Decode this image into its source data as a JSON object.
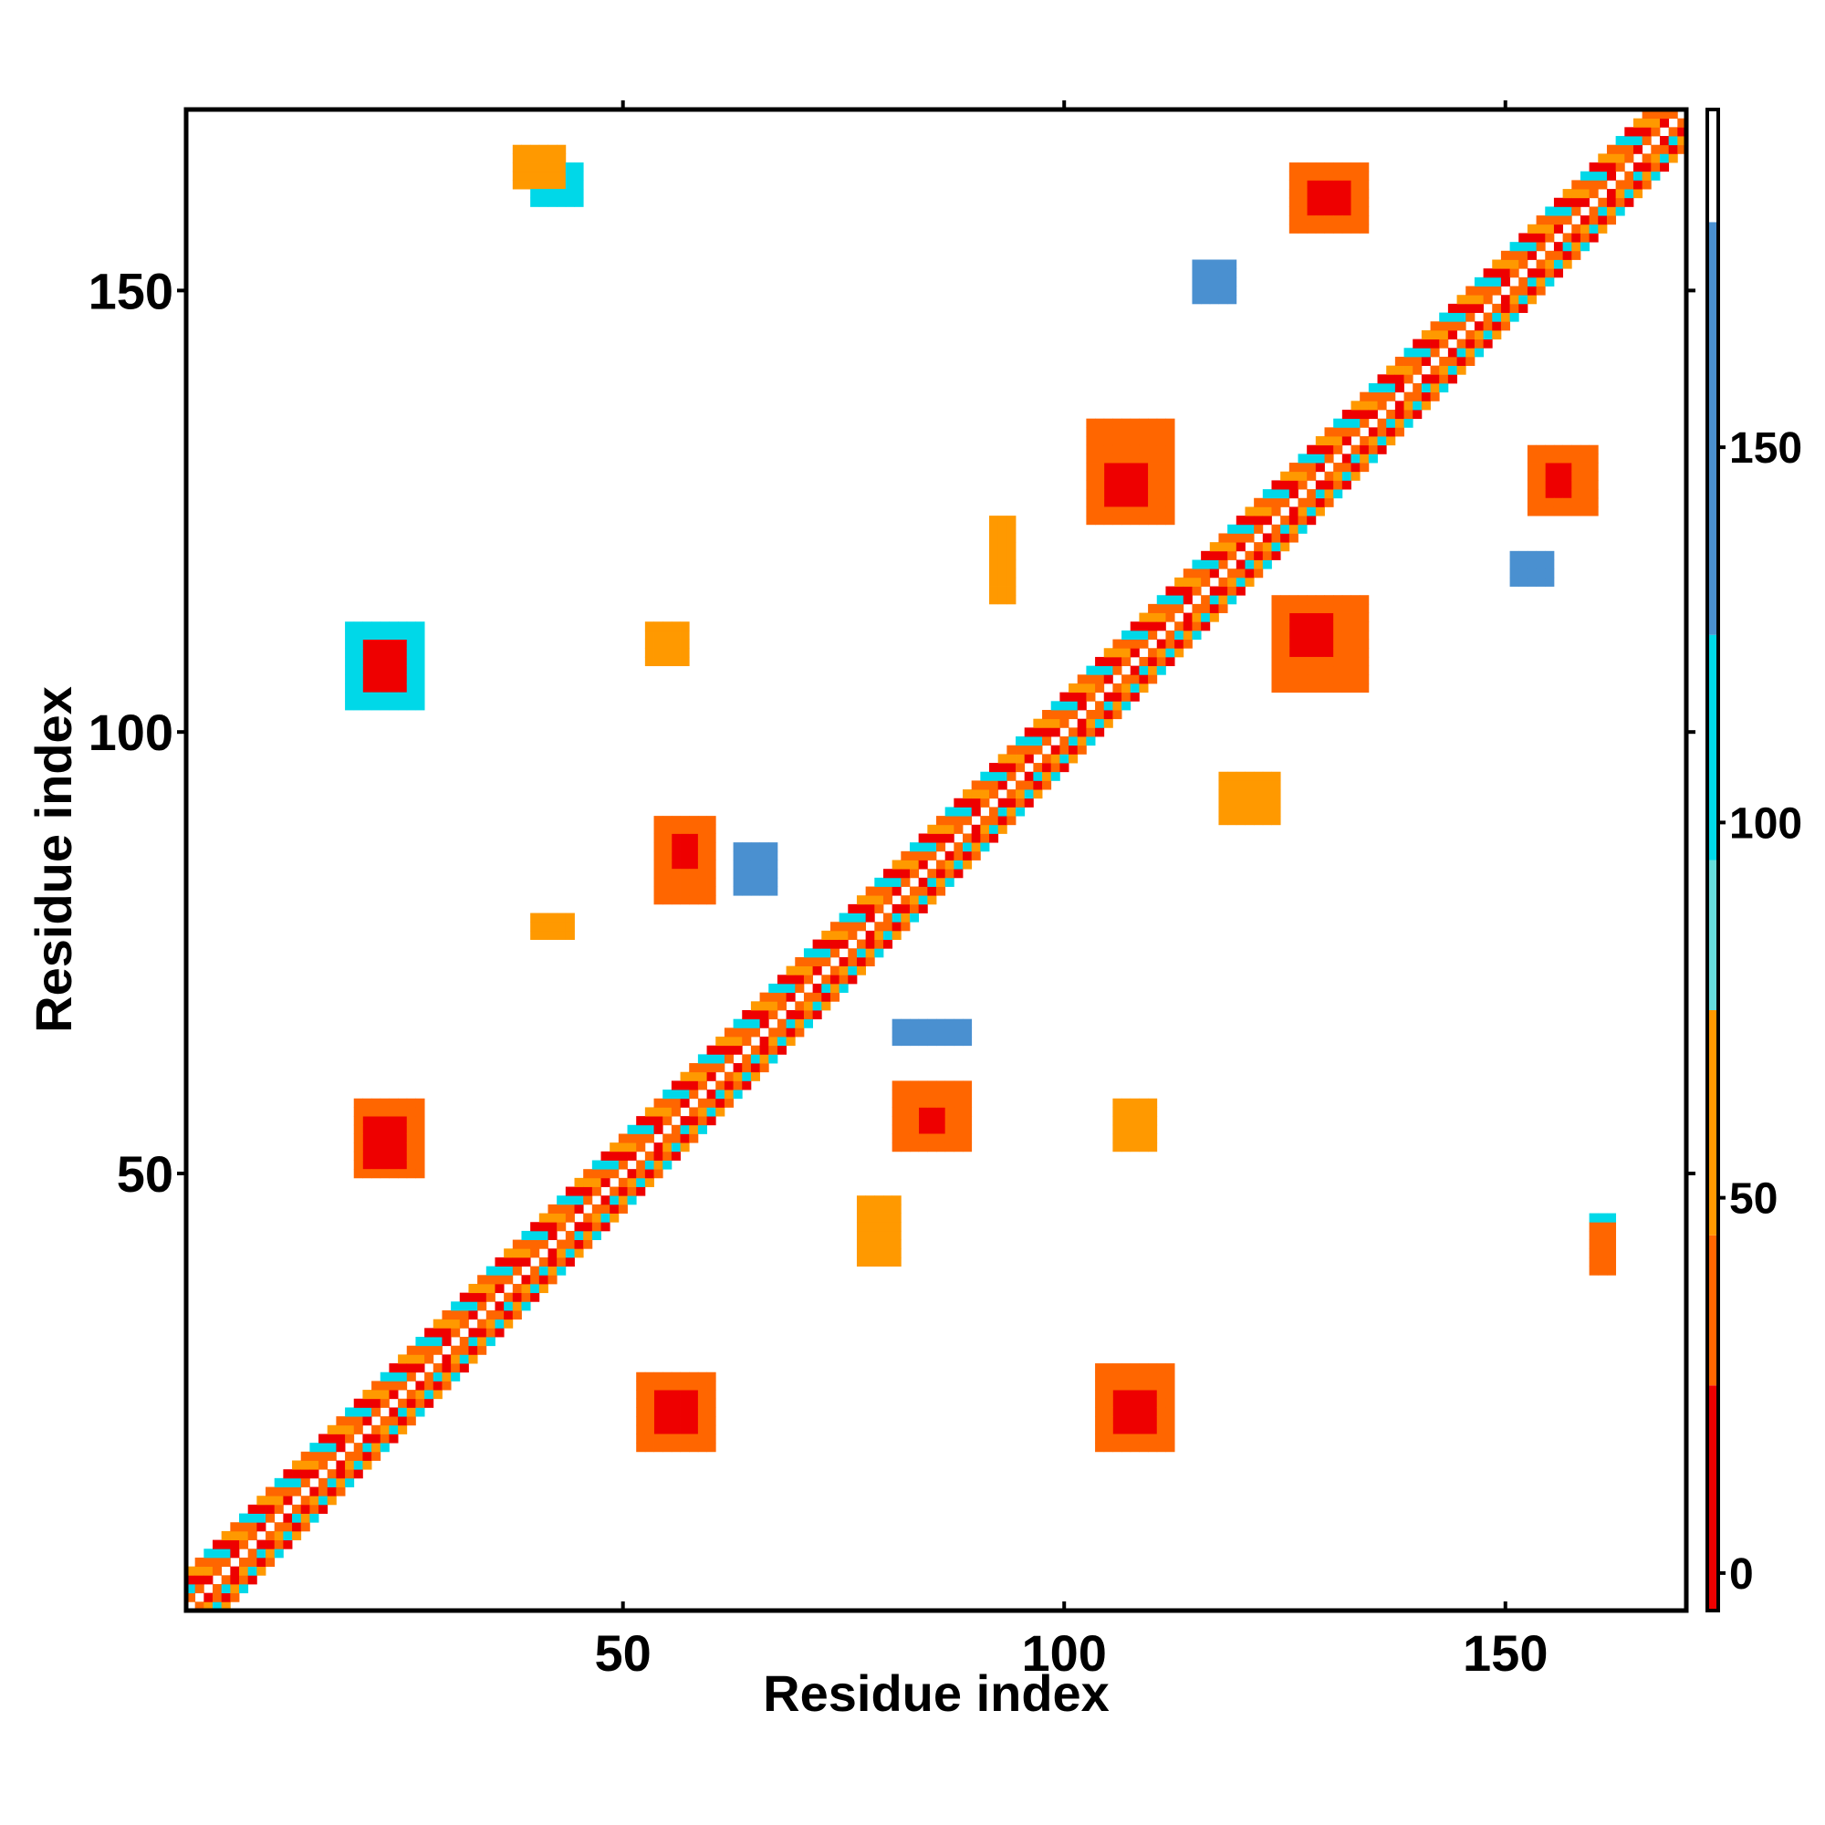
{
  "chart_data": {
    "type": "heatmap",
    "xlabel": "Residue index",
    "ylabel": "Residue index",
    "xlim": [
      1,
      170
    ],
    "ylim": [
      1,
      170
    ],
    "xticks": [
      50,
      100,
      150
    ],
    "yticks": [
      50,
      100,
      150
    ],
    "colorbar": {
      "ticks": [
        0,
        50,
        100,
        150
      ],
      "range": [
        -5,
        195
      ],
      "bands": [
        {
          "from": -5,
          "to": 25,
          "color": "#ee0000"
        },
        {
          "from": 25,
          "to": 45,
          "color": "#ff6600"
        },
        {
          "from": 45,
          "to": 75,
          "color": "#ff9900"
        },
        {
          "from": 75,
          "to": 95,
          "color": "#66dddd"
        },
        {
          "from": 95,
          "to": 125,
          "color": "#00d8e8"
        },
        {
          "from": 125,
          "to": 180,
          "color": "#4a90d0"
        },
        {
          "from": 180,
          "to": 195,
          "color": "#ffffff"
        }
      ]
    },
    "diagonal_band": {
      "from": 1,
      "to": 170,
      "width": 4
    },
    "value_levels": {
      "red": 5,
      "orange": 40,
      "amber": 60,
      "cyan": 110,
      "blue": 150
    },
    "contact_clusters": [
      {
        "x": [
          21,
          25
        ],
        "y": [
          105,
          110
        ],
        "v": "red"
      },
      {
        "x": [
          19,
          27
        ],
        "y": [
          103,
          112
        ],
        "v": "cyan"
      },
      {
        "x": [
          21,
          25
        ],
        "y": [
          51,
          56
        ],
        "v": "red"
      },
      {
        "x": [
          20,
          27
        ],
        "y": [
          50,
          58
        ],
        "v": "orange"
      },
      {
        "x": [
          54,
          58
        ],
        "y": [
          21,
          25
        ],
        "v": "red"
      },
      {
        "x": [
          52,
          60
        ],
        "y": [
          19,
          27
        ],
        "v": "orange"
      },
      {
        "x": [
          106,
          110
        ],
        "y": [
          21,
          25
        ],
        "v": "red"
      },
      {
        "x": [
          104,
          112
        ],
        "y": [
          19,
          28
        ],
        "v": "orange"
      },
      {
        "x": [
          108,
          112
        ],
        "y": [
          26,
          28
        ],
        "v": "cyan"
      },
      {
        "x": [
          126,
          130
        ],
        "y": [
          109,
          113
        ],
        "v": "red"
      },
      {
        "x": [
          124,
          134
        ],
        "y": [
          105,
          115
        ],
        "v": "orange"
      },
      {
        "x": [
          128,
          132
        ],
        "y": [
          159,
          162
        ],
        "v": "red"
      },
      {
        "x": [
          126,
          134
        ],
        "y": [
          157,
          164
        ],
        "v": "orange"
      },
      {
        "x": [
          105,
          109
        ],
        "y": [
          126,
          130
        ],
        "v": "red"
      },
      {
        "x": [
          103,
          112
        ],
        "y": [
          124,
          135
        ],
        "v": "orange"
      },
      {
        "x": [
          56,
          58
        ],
        "y": [
          85,
          88
        ],
        "v": "red"
      },
      {
        "x": [
          54,
          60
        ],
        "y": [
          81,
          90
        ],
        "v": "orange"
      },
      {
        "x": [
          84,
          86
        ],
        "y": [
          55,
          57
        ],
        "v": "red"
      },
      {
        "x": [
          81,
          89
        ],
        "y": [
          53,
          60
        ],
        "v": "orange"
      },
      {
        "x": [
          86,
          88
        ],
        "y": [
          58,
          60
        ],
        "v": "cyan"
      },
      {
        "x": [
          155,
          157
        ],
        "y": [
          127,
          130
        ],
        "v": "red"
      },
      {
        "x": [
          153,
          160
        ],
        "y": [
          125,
          132
        ],
        "v": "orange"
      },
      {
        "x": [
          118,
          124
        ],
        "y": [
          90,
          95
        ],
        "v": "amber"
      },
      {
        "x": [
          92,
          94
        ],
        "y": [
          115,
          124
        ],
        "v": "amber"
      },
      {
        "x": [
          38,
          43
        ],
        "y": [
          162,
          166
        ],
        "v": "amber"
      },
      {
        "x": [
          40,
          45
        ],
        "y": [
          160,
          164
        ],
        "v": "cyan"
      },
      {
        "x": [
          160,
          162
        ],
        "y": [
          39,
          44
        ],
        "v": "orange"
      },
      {
        "x": [
          160,
          162
        ],
        "y": [
          42,
          45
        ],
        "v": "cyan"
      },
      {
        "x": [
          77,
          81
        ],
        "y": [
          40,
          47
        ],
        "v": "amber"
      },
      {
        "x": [
          40,
          44
        ],
        "y": [
          77,
          79
        ],
        "v": "amber"
      },
      {
        "x": [
          53,
          57
        ],
        "y": [
          108,
          112
        ],
        "v": "amber"
      },
      {
        "x": [
          106,
          110
        ],
        "y": [
          53,
          58
        ],
        "v": "amber"
      },
      {
        "x": [
          81,
          89
        ],
        "y": [
          65,
          67
        ],
        "v": "blue"
      },
      {
        "x": [
          63,
          67
        ],
        "y": [
          82,
          87
        ],
        "v": "blue"
      },
      {
        "x": [
          151,
          155
        ],
        "y": [
          117,
          120
        ],
        "v": "blue"
      },
      {
        "x": [
          115,
          119
        ],
        "y": [
          149,
          153
        ],
        "v": "blue"
      }
    ]
  }
}
